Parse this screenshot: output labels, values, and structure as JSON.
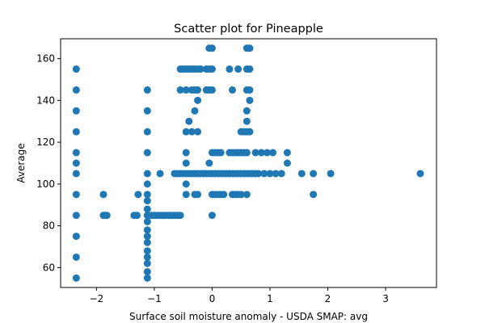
{
  "chart_data": {
    "type": "scatter",
    "title": "Scatter plot for Pineapple",
    "xlabel": "Surface soil moisture anomaly  - USDA SMAP: avg",
    "ylabel": "Average",
    "xlim": [
      -2.62,
      3.88
    ],
    "ylim": [
      50.5,
      169.5
    ],
    "xticks": [
      -2,
      -1,
      0,
      1,
      2,
      3
    ],
    "yticks": [
      60,
      80,
      100,
      120,
      140,
      160
    ],
    "grid": false,
    "marker_color": "#1f77b4",
    "points": [
      [
        -2.35,
        55
      ],
      [
        -2.35,
        65
      ],
      [
        -2.35,
        75
      ],
      [
        -2.35,
        85
      ],
      [
        -2.35,
        95
      ],
      [
        -2.35,
        105
      ],
      [
        -2.35,
        110
      ],
      [
        -2.35,
        115
      ],
      [
        -2.35,
        125
      ],
      [
        -2.35,
        135
      ],
      [
        -2.35,
        145
      ],
      [
        -2.35,
        155
      ],
      [
        -1.88,
        85
      ],
      [
        -1.85,
        85
      ],
      [
        -1.82,
        85
      ],
      [
        -1.88,
        95
      ],
      [
        -1.35,
        85
      ],
      [
        -1.3,
        85
      ],
      [
        -1.28,
        95
      ],
      [
        -1.12,
        55
      ],
      [
        -1.12,
        58
      ],
      [
        -1.12,
        62
      ],
      [
        -1.12,
        65
      ],
      [
        -1.12,
        68
      ],
      [
        -1.12,
        72
      ],
      [
        -1.12,
        75
      ],
      [
        -1.12,
        78
      ],
      [
        -1.12,
        82
      ],
      [
        -1.12,
        85
      ],
      [
        -1.12,
        88
      ],
      [
        -1.12,
        92
      ],
      [
        -1.12,
        95
      ],
      [
        -1.12,
        100
      ],
      [
        -1.12,
        105
      ],
      [
        -1.12,
        115
      ],
      [
        -1.12,
        125
      ],
      [
        -1.12,
        135
      ],
      [
        -1.12,
        145
      ],
      [
        -1.05,
        85
      ],
      [
        -1.0,
        85
      ],
      [
        -0.95,
        85
      ],
      [
        -0.9,
        85
      ],
      [
        -0.85,
        85
      ],
      [
        -0.8,
        85
      ],
      [
        -0.75,
        85
      ],
      [
        -0.7,
        85
      ],
      [
        -0.65,
        85
      ],
      [
        -0.6,
        85
      ],
      [
        -0.55,
        85
      ],
      [
        -0.9,
        105
      ],
      [
        -0.65,
        105
      ],
      [
        -0.6,
        105
      ],
      [
        -0.55,
        105
      ],
      [
        -0.5,
        105
      ],
      [
        -0.45,
        105
      ],
      [
        -0.4,
        105
      ],
      [
        -0.35,
        105
      ],
      [
        -0.3,
        105
      ],
      [
        -0.25,
        105
      ],
      [
        -0.2,
        105
      ],
      [
        -0.15,
        105
      ],
      [
        -0.1,
        105
      ],
      [
        -0.05,
        105
      ],
      [
        0.0,
        105
      ],
      [
        0.05,
        105
      ],
      [
        0.1,
        105
      ],
      [
        0.15,
        105
      ],
      [
        0.2,
        105
      ],
      [
        0.25,
        105
      ],
      [
        0.3,
        105
      ],
      [
        0.35,
        105
      ],
      [
        0.4,
        105
      ],
      [
        0.45,
        105
      ],
      [
        0.5,
        105
      ],
      [
        0.55,
        105
      ],
      [
        0.6,
        105
      ],
      [
        0.65,
        105
      ],
      [
        0.7,
        105
      ],
      [
        0.75,
        105
      ],
      [
        0.8,
        105
      ],
      [
        0.9,
        105
      ],
      [
        1.0,
        105
      ],
      [
        1.1,
        105
      ],
      [
        1.2,
        105
      ],
      [
        -0.45,
        95
      ],
      [
        -0.45,
        100
      ],
      [
        -0.3,
        95
      ],
      [
        -0.25,
        95
      ],
      [
        0.0,
        95
      ],
      [
        0.05,
        95
      ],
      [
        0.1,
        95
      ],
      [
        0.15,
        95
      ],
      [
        0.2,
        95
      ],
      [
        0.35,
        95
      ],
      [
        0.4,
        95
      ],
      [
        0.45,
        95
      ],
      [
        0.5,
        95
      ],
      [
        0.6,
        95
      ],
      [
        0.0,
        85
      ],
      [
        -0.45,
        110
      ],
      [
        -0.45,
        115
      ],
      [
        -0.05,
        110
      ],
      [
        0.0,
        115
      ],
      [
        0.05,
        115
      ],
      [
        0.1,
        115
      ],
      [
        0.15,
        115
      ],
      [
        0.3,
        115
      ],
      [
        0.35,
        115
      ],
      [
        0.4,
        115
      ],
      [
        0.45,
        115
      ],
      [
        0.5,
        115
      ],
      [
        0.55,
        115
      ],
      [
        0.6,
        115
      ],
      [
        0.75,
        115
      ],
      [
        0.85,
        115
      ],
      [
        0.95,
        115
      ],
      [
        1.05,
        115
      ],
      [
        1.3,
        115
      ],
      [
        -0.45,
        125
      ],
      [
        -0.35,
        125
      ],
      [
        -0.25,
        125
      ],
      [
        -0.4,
        130
      ],
      [
        0.5,
        125
      ],
      [
        0.55,
        125
      ],
      [
        0.6,
        125
      ],
      [
        0.65,
        125
      ],
      [
        -0.3,
        135
      ],
      [
        -0.25,
        140
      ],
      [
        0.6,
        130
      ],
      [
        0.6,
        135
      ],
      [
        0.65,
        140
      ],
      [
        -0.55,
        145
      ],
      [
        -0.45,
        145
      ],
      [
        -0.35,
        145
      ],
      [
        -0.3,
        145
      ],
      [
        -0.25,
        145
      ],
      [
        -0.1,
        145
      ],
      [
        -0.05,
        145
      ],
      [
        0.0,
        145
      ],
      [
        0.35,
        145
      ],
      [
        0.6,
        145
      ],
      [
        0.65,
        145
      ],
      [
        -0.55,
        155
      ],
      [
        -0.5,
        155
      ],
      [
        -0.45,
        155
      ],
      [
        -0.4,
        155
      ],
      [
        -0.35,
        155
      ],
      [
        -0.3,
        155
      ],
      [
        -0.25,
        155
      ],
      [
        -0.2,
        155
      ],
      [
        -0.1,
        155
      ],
      [
        -0.05,
        155
      ],
      [
        0.0,
        155
      ],
      [
        0.3,
        155
      ],
      [
        0.45,
        155
      ],
      [
        0.6,
        155
      ],
      [
        0.65,
        155
      ],
      [
        -0.05,
        165
      ],
      [
        0.0,
        165
      ],
      [
        0.6,
        165
      ],
      [
        0.65,
        165
      ],
      [
        1.3,
        110
      ],
      [
        1.55,
        105
      ],
      [
        1.75,
        105
      ],
      [
        1.75,
        95
      ],
      [
        2.05,
        105
      ],
      [
        3.6,
        105
      ]
    ]
  }
}
